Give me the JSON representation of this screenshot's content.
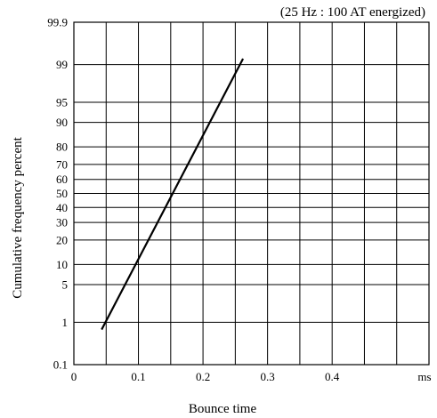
{
  "chart_data": {
    "type": "line",
    "title": "(25 Hz : 100 AT energized)",
    "xlabel": "Bounce time",
    "ylabel": "Cumulative frequency percent",
    "x_unit": "ms",
    "y_scale": "normal-probability",
    "grid": true,
    "xlim": [
      0,
      0.55
    ],
    "ylim": [
      0.1,
      99.9
    ],
    "x_ticks": [
      0,
      0.1,
      0.2,
      0.3,
      0.4
    ],
    "x_tick_labels": [
      "0",
      "0.1",
      "0.2",
      "0.3",
      "0.4"
    ],
    "y_ticks": [
      0.1,
      1,
      5,
      10,
      20,
      30,
      40,
      50,
      60,
      70,
      80,
      90,
      95,
      99,
      99.9
    ],
    "y_tick_labels": [
      "0.1",
      "1",
      "5",
      "10",
      "20",
      "30",
      "40",
      "50",
      "60",
      "70",
      "80",
      "90",
      "95",
      "99",
      "99.9"
    ],
    "series": [
      {
        "x": [
          0.043,
          0.262
        ],
        "y": [
          0.7,
          99.25
        ]
      }
    ]
  }
}
